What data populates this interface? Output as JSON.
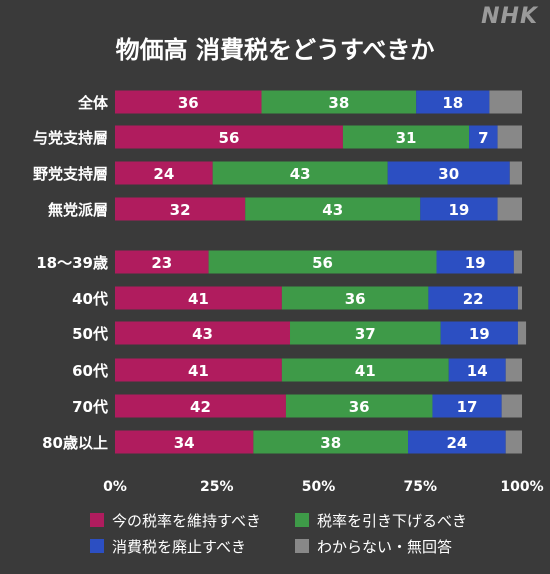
{
  "logo": "NHK",
  "chart_data": {
    "type": "bar",
    "orientation": "horizontal",
    "stacked": true,
    "title": "物価高 消費税をどうすべきか",
    "categories": [
      "全体",
      "与党支持層",
      "野党支持層",
      "無党派層",
      "18～39歳",
      "40代",
      "50代",
      "60代",
      "70代",
      "80歳以上"
    ],
    "series": [
      {
        "name": "今の税率を維持すべき",
        "color": "#b01c5e",
        "values": [
          36,
          56,
          24,
          32,
          23,
          41,
          43,
          41,
          42,
          34
        ]
      },
      {
        "name": "税率を引き下げるべき",
        "color": "#3e9a48",
        "values": [
          38,
          31,
          43,
          43,
          56,
          36,
          37,
          41,
          36,
          38
        ]
      },
      {
        "name": "消費税を廃止すべき",
        "color": "#2c4fc2",
        "values": [
          18,
          7,
          30,
          19,
          19,
          22,
          19,
          14,
          17,
          24
        ]
      },
      {
        "name": "わからない・無回答",
        "color": "#888888",
        "values": [
          8,
          6,
          3,
          6,
          2,
          1,
          2,
          4,
          5,
          4
        ]
      }
    ],
    "xlim": [
      0,
      100
    ],
    "xticks": [
      "0%",
      "25%",
      "50%",
      "75%",
      "100%"
    ],
    "grid": false,
    "legend_position": "bottom",
    "data_labels_on_series": [
      0,
      1,
      2
    ]
  }
}
